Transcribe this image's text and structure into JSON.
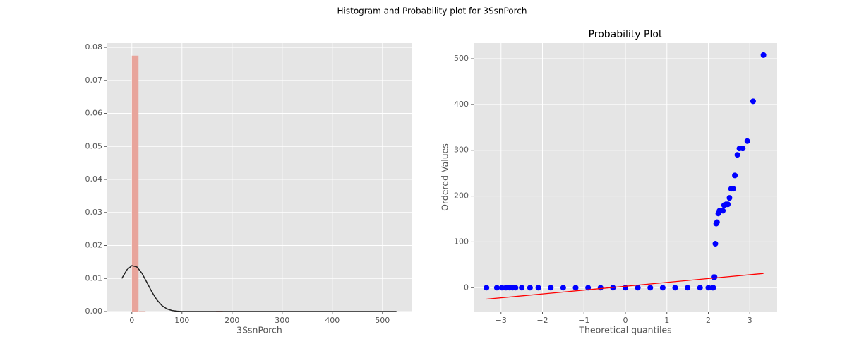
{
  "title": "Histogram and Probability plot for 3SsnPorch",
  "chart_data": [
    {
      "type": "histogram",
      "xlabel": "3SsnPorch",
      "color": "#e8a49b",
      "bins": [
        0,
        14,
        28,
        42,
        56,
        70,
        84,
        98,
        112,
        126,
        140,
        154,
        168,
        182,
        196,
        210,
        224,
        238,
        252,
        266,
        280,
        294,
        308,
        322,
        336,
        350,
        364,
        378,
        392,
        406,
        420,
        434,
        448,
        462,
        476,
        490,
        504,
        518
      ],
      "values": [
        0.0775,
        0.0001,
        0,
        0,
        0,
        0,
        5e-05,
        0,
        0,
        0,
        0.0001,
        0.0001,
        0.0002,
        0.0001,
        5e-05,
        0.0001,
        0,
        5e-05,
        0,
        0,
        5e-05,
        0.0001,
        5e-05,
        0,
        0,
        0,
        0,
        0,
        0,
        5e-05,
        0,
        0,
        0,
        0,
        0,
        0,
        5e-05
      ],
      "kde": {
        "color": "#222222",
        "x": [
          -20,
          -10,
          0,
          10,
          20,
          30,
          40,
          50,
          60,
          70,
          80,
          90,
          100,
          200,
          300,
          400,
          500,
          528
        ],
        "values": [
          0.01,
          0.0126,
          0.0139,
          0.0135,
          0.0116,
          0.0088,
          0.0059,
          0.0035,
          0.0018,
          0.0008,
          0.0003,
          0.0001,
          0,
          0,
          0,
          0,
          0,
          0
        ]
      },
      "xlim": [
        -49,
        558
      ],
      "ylim": [
        0,
        0.0813
      ],
      "xticks": [
        0,
        100,
        200,
        300,
        400,
        500
      ],
      "yticks": [
        {
          "value": 0,
          "label": "0.00"
        },
        {
          "value": 0.01,
          "label": "0.01"
        },
        {
          "value": 0.02,
          "label": "0.02"
        },
        {
          "value": 0.03,
          "label": "0.03"
        },
        {
          "value": 0.04,
          "label": "0.04"
        },
        {
          "value": 0.05,
          "label": "0.05"
        },
        {
          "value": 0.06,
          "label": "0.06"
        },
        {
          "value": 0.07,
          "label": "0.07"
        },
        {
          "value": 0.08,
          "label": "0.08"
        }
      ],
      "grid": true
    },
    {
      "type": "scatter",
      "title": "Probability Plot",
      "xlabel": "Theoretical quantiles",
      "ylabel": "Ordered Values",
      "color": "#0000ff",
      "x": [
        -3.35,
        -3.1,
        -2.98,
        -2.88,
        -2.79,
        -2.72,
        -2.65,
        -2.5,
        -2.3,
        -2.1,
        -1.8,
        -1.5,
        -1.2,
        -0.9,
        -0.6,
        -0.3,
        0,
        0.3,
        0.6,
        0.9,
        1.2,
        1.5,
        1.8,
        2.0,
        2.1,
        2.12,
        2.13,
        2.15,
        2.17,
        2.19,
        2.21,
        2.24,
        2.27,
        2.3,
        2.35,
        2.38,
        2.43,
        2.47,
        2.51,
        2.55,
        2.6,
        2.64,
        2.7,
        2.75,
        2.83,
        2.94,
        3.08,
        3.33
      ],
      "values": [
        0,
        0,
        0,
        0,
        0,
        0,
        0,
        0,
        0,
        0,
        0,
        0,
        0,
        0,
        0,
        0,
        0,
        0,
        0,
        0,
        0,
        0,
        0,
        0,
        0,
        0,
        23,
        23,
        96,
        140,
        143,
        162,
        168,
        168,
        168,
        180,
        182,
        182,
        196,
        216,
        216,
        245,
        290,
        304,
        304,
        320,
        407,
        508
      ],
      "fit": {
        "color": "#ff0000",
        "x": [
          -3.35,
          3.33
        ],
        "values": [
          -25,
          31
        ]
      },
      "xlim": [
        -3.66,
        3.66
      ],
      "ylim": [
        -52,
        534
      ],
      "xticks": [
        {
          "value": -3,
          "label": "−3"
        },
        {
          "value": -2,
          "label": "−2"
        },
        {
          "value": -1,
          "label": "−1"
        },
        0,
        1,
        2,
        3
      ],
      "yticks": [
        0,
        100,
        200,
        300,
        400,
        500
      ],
      "grid": true
    }
  ]
}
